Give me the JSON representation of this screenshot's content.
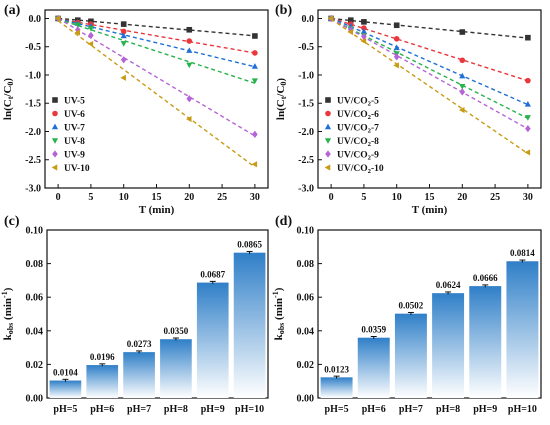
{
  "panel_labels": [
    "(a)",
    "(b)",
    "(c)",
    "(d)"
  ],
  "chart_data": [
    {
      "panel": "(a)",
      "type": "scatter",
      "xlabel": "T (min)",
      "ylabel": "ln(Ct/C0)",
      "xlim": [
        -2,
        32
      ],
      "ylim": [
        -3.0,
        0.15
      ],
      "xticks": [
        0,
        5,
        10,
        15,
        20,
        25,
        30
      ],
      "yticks": [
        0.0,
        -0.5,
        -1.0,
        -1.5,
        -2.0,
        -2.5,
        -3.0
      ],
      "fit_lines": "dashed linear fits",
      "legend_position": "bottom-left",
      "series": [
        {
          "name": "UV-5",
          "color": "#333333",
          "marker": "square",
          "x": [
            0,
            3,
            5,
            10,
            20,
            30
          ],
          "y": [
            0.0,
            -0.03,
            -0.05,
            -0.1,
            -0.2,
            -0.31
          ]
        },
        {
          "name": "UV-6",
          "color": "#e8383d",
          "marker": "circle",
          "x": [
            0,
            3,
            5,
            10,
            20,
            30
          ],
          "y": [
            0.0,
            -0.07,
            -0.1,
            -0.23,
            -0.4,
            -0.61
          ]
        },
        {
          "name": "UV-7",
          "color": "#1f6fd6",
          "marker": "triangle-up",
          "x": [
            0,
            3,
            5,
            10,
            20,
            30
          ],
          "y": [
            0.0,
            -0.09,
            -0.14,
            -0.31,
            -0.57,
            -0.85
          ]
        },
        {
          "name": "UV-8",
          "color": "#27b24a",
          "marker": "triangle-down",
          "x": [
            0,
            3,
            5,
            10,
            20,
            30
          ],
          "y": [
            0.0,
            -0.11,
            -0.17,
            -0.44,
            -0.82,
            -1.1
          ]
        },
        {
          "name": "UV-9",
          "color": "#b464d6",
          "marker": "diamond",
          "x": [
            0,
            3,
            5,
            10,
            20,
            30
          ],
          "y": [
            0.0,
            -0.2,
            -0.3,
            -0.73,
            -1.42,
            -2.05
          ]
        },
        {
          "name": "UV-10",
          "color": "#c89b14",
          "marker": "triangle-left",
          "x": [
            0,
            3,
            5,
            10,
            20,
            30
          ],
          "y": [
            0.0,
            -0.25,
            -0.45,
            -1.05,
            -1.78,
            -2.58
          ]
        }
      ]
    },
    {
      "panel": "(b)",
      "type": "scatter",
      "xlabel": "T (min)",
      "ylabel": "ln(Ct/C0)",
      "xlim": [
        -2,
        32
      ],
      "ylim": [
        -3.0,
        0.15
      ],
      "xticks": [
        0,
        5,
        10,
        15,
        20,
        25,
        30
      ],
      "yticks": [
        0.0,
        -0.5,
        -1.0,
        -1.5,
        -2.0,
        -2.5,
        -3.0
      ],
      "fit_lines": "dashed linear fits",
      "legend_position": "bottom-left",
      "series": [
        {
          "name": "UV/CO2-5",
          "color": "#333333",
          "marker": "square",
          "x": [
            0,
            3,
            5,
            10,
            20,
            30
          ],
          "y": [
            0.0,
            -0.03,
            -0.06,
            -0.12,
            -0.24,
            -0.34
          ]
        },
        {
          "name": "UV/CO2-6",
          "color": "#e8383d",
          "marker": "circle",
          "x": [
            0,
            3,
            5,
            10,
            20,
            30
          ],
          "y": [
            0.0,
            -0.1,
            -0.17,
            -0.36,
            -0.74,
            -1.1
          ]
        },
        {
          "name": "UV/CO2-7",
          "color": "#1f6fd6",
          "marker": "triangle-up",
          "x": [
            0,
            3,
            5,
            10,
            20,
            30
          ],
          "y": [
            0.0,
            -0.14,
            -0.23,
            -0.52,
            -1.02,
            -1.52
          ]
        },
        {
          "name": "UV/CO2-8",
          "color": "#27b24a",
          "marker": "triangle-down",
          "x": [
            0,
            3,
            5,
            10,
            20,
            30
          ],
          "y": [
            0.0,
            -0.18,
            -0.3,
            -0.62,
            -1.2,
            -1.75
          ]
        },
        {
          "name": "UV/CO2-9",
          "color": "#b464d6",
          "marker": "diamond",
          "x": [
            0,
            3,
            5,
            10,
            20,
            30
          ],
          "y": [
            0.0,
            -0.2,
            -0.32,
            -0.68,
            -1.3,
            -1.95
          ]
        },
        {
          "name": "UV/CO2-10",
          "color": "#c89b14",
          "marker": "triangle-left",
          "x": [
            0,
            3,
            5,
            10,
            20,
            30
          ],
          "y": [
            0.0,
            -0.24,
            -0.4,
            -0.83,
            -1.62,
            -2.37
          ]
        }
      ]
    },
    {
      "panel": "(c)",
      "type": "bar",
      "xlabel": "",
      "ylabel": "kobs (min-1)",
      "ylim": [
        0,
        0.1
      ],
      "yticks": [
        0.0,
        0.02,
        0.04,
        0.06,
        0.08,
        0.1
      ],
      "categories": [
        "pH=5",
        "pH=6",
        "pH=7",
        "pH=8",
        "pH=9",
        "pH=10"
      ],
      "values": [
        0.0104,
        0.0196,
        0.0273,
        0.035,
        0.0687,
        0.0865
      ],
      "value_labels": [
        "0.0104",
        "0.0196",
        "0.0273",
        "0.0350",
        "0.0687",
        "0.0865"
      ],
      "bar_gradient": [
        "#2f7fc8",
        "#ffffff"
      ],
      "error_bars": true
    },
    {
      "panel": "(d)",
      "type": "bar",
      "xlabel": "",
      "ylabel": "kobs (min-1)",
      "ylim": [
        0,
        0.1
      ],
      "yticks": [
        0.0,
        0.02,
        0.04,
        0.06,
        0.08,
        0.1
      ],
      "categories": [
        "pH=5",
        "pH=6",
        "pH=7",
        "pH=8",
        "pH=9",
        "pH=10"
      ],
      "values": [
        0.0123,
        0.0359,
        0.0502,
        0.0624,
        0.0666,
        0.0814
      ],
      "value_labels": [
        "0.0123",
        "0.0359",
        "0.0502",
        "0.0624",
        "0.0666",
        "0.0814"
      ],
      "bar_gradient": [
        "#2f7fc8",
        "#ffffff"
      ],
      "error_bars": true
    }
  ]
}
